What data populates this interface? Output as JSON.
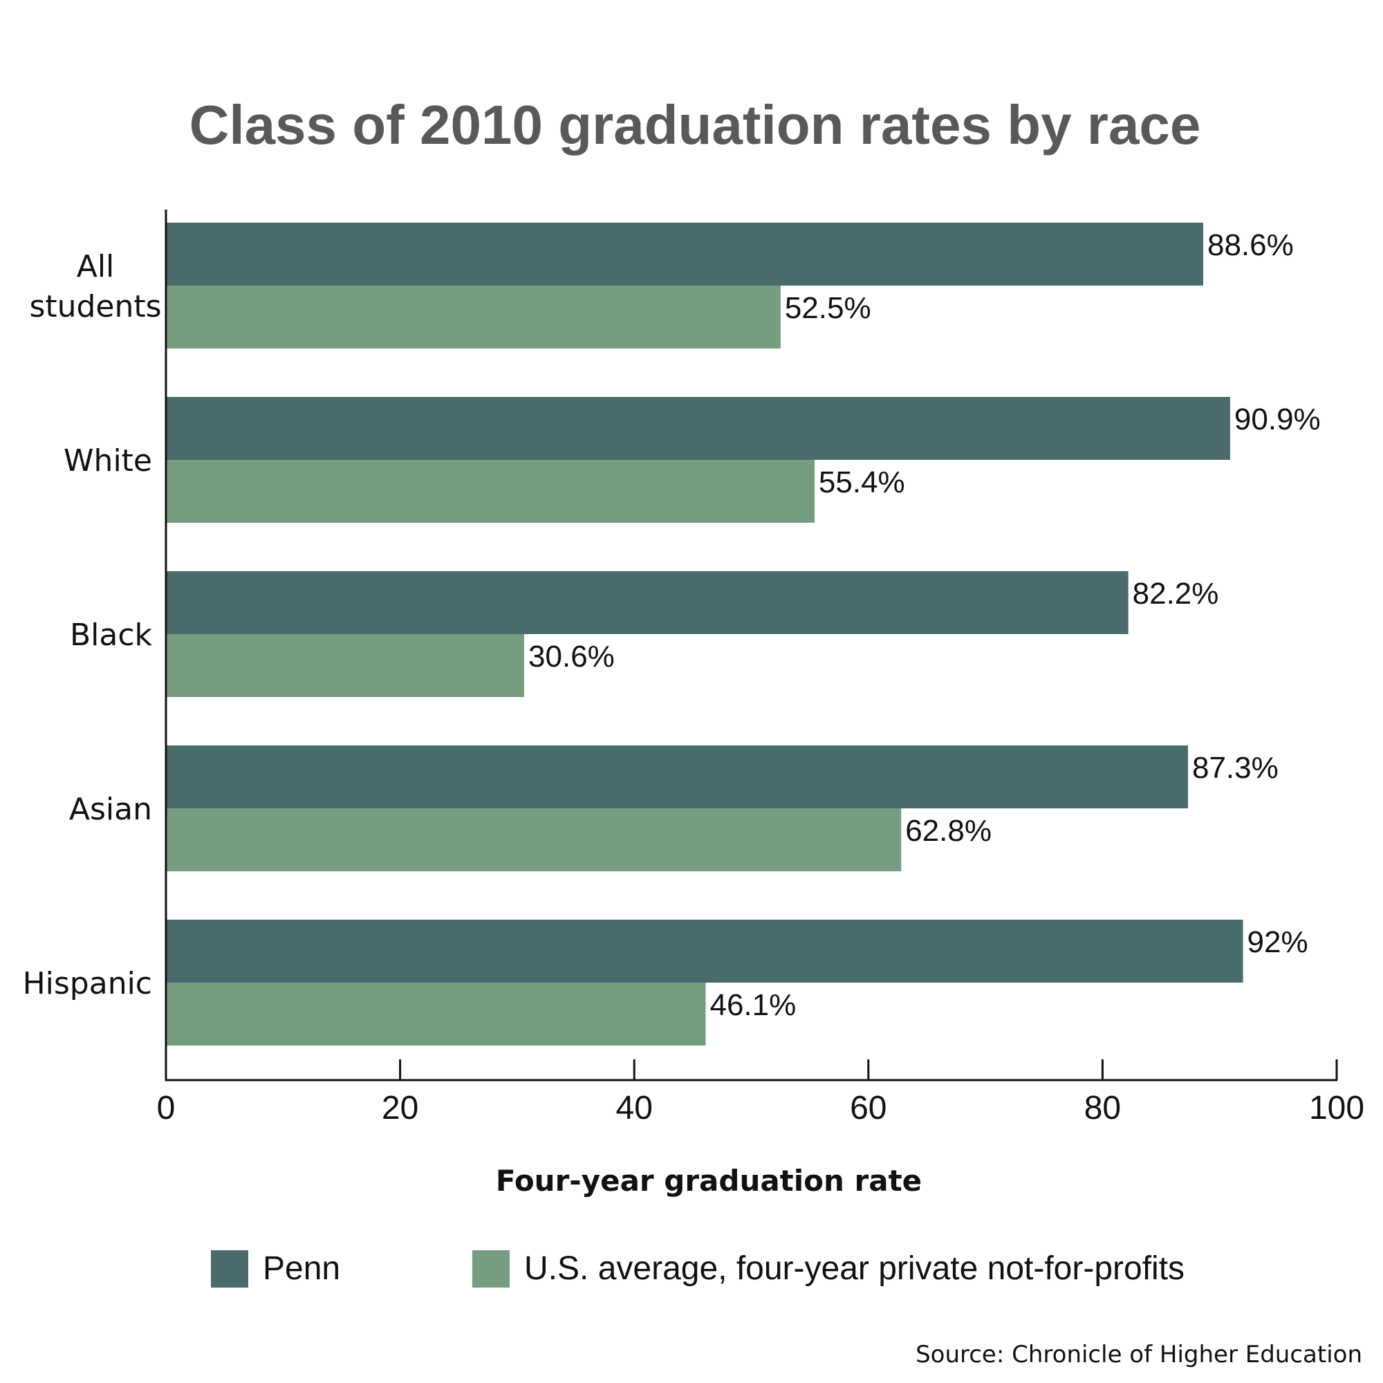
{
  "chart_data": {
    "type": "bar",
    "orientation": "horizontal",
    "title": "Class of 2010 graduation rates by race",
    "xlabel": "Four-year graduation rate",
    "ylabel": "",
    "xlim": [
      0,
      100
    ],
    "x_ticks": [
      "0",
      "20",
      "40",
      "60",
      "80",
      "100"
    ],
    "categories": [
      [
        "All",
        "students"
      ],
      [
        "White"
      ],
      [
        "Black"
      ],
      [
        "Asian"
      ],
      [
        "Hispanic"
      ]
    ],
    "series": [
      {
        "name": "Penn",
        "color": "#4a6b6c",
        "values": [
          88.6,
          90.9,
          82.2,
          87.3,
          92
        ],
        "labels": [
          "88.6%",
          "90.9%",
          "82.2%",
          "87.3%",
          "92%"
        ]
      },
      {
        "name": "U.S. average, four-year private not-for-profits",
        "color": "#769d80",
        "values": [
          52.5,
          55.4,
          30.6,
          62.8,
          46.1
        ],
        "labels": [
          "52.5%",
          "55.4%",
          "30.6%",
          "62.8%",
          "46.1%"
        ]
      }
    ],
    "grid": false,
    "legend_position": "bottom",
    "source": "Source: Chronicle of Higher Education"
  }
}
